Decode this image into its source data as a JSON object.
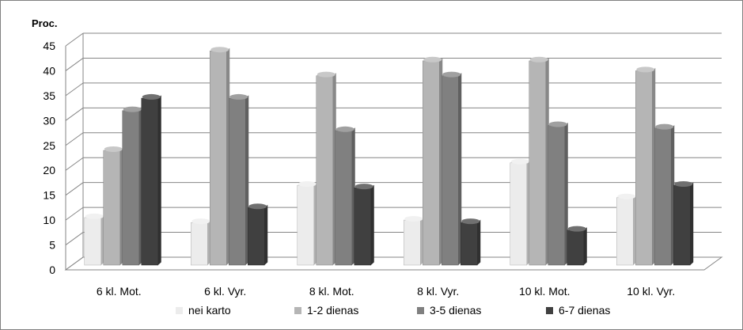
{
  "chart_data": {
    "type": "bar",
    "ylabel": "Proc.",
    "ylim": [
      0,
      45
    ],
    "yticks": [
      0,
      5,
      10,
      15,
      20,
      25,
      30,
      35,
      40,
      45
    ],
    "grid": true,
    "legend_position": "bottom",
    "categories": [
      "6 kl. Mot.",
      "6 kl. Vyr.",
      "8 kl. Mot.",
      "8 kl. Vyr.",
      "10 kl. Mot.",
      "10 kl. Vyr."
    ],
    "series": [
      {
        "name": "nei karto",
        "color": "#ececec",
        "values": [
          10.5,
          9.5,
          17,
          10,
          21.5,
          14.5
        ]
      },
      {
        "name": "1-2 dienas",
        "color": "#b5b5b5",
        "values": [
          24,
          44,
          39,
          42,
          42,
          40
        ]
      },
      {
        "name": "3-5 dienas",
        "color": "#808080",
        "values": [
          32,
          34.5,
          28,
          39,
          29,
          28.5
        ]
      },
      {
        "name": "6-7 dienas",
        "color": "#404040",
        "values": [
          34.5,
          12.5,
          16.5,
          9.5,
          8,
          17
        ]
      }
    ]
  }
}
